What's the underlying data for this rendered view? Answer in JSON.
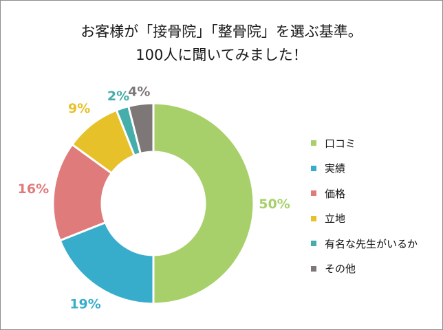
{
  "chart_data": {
    "type": "pie",
    "donut": true,
    "title": [
      "お客様が「接骨院」「整骨院」を選ぶ基準。",
      "100人に聞いてみました！"
    ],
    "categories": [
      "口コミ",
      "実績",
      "価格",
      "立地",
      "有名な先生がいるか",
      "その他"
    ],
    "values": [
      50,
      19,
      16,
      9,
      2,
      4
    ],
    "labels": [
      "50%",
      "19%",
      "16%",
      "9%",
      "2%",
      "4%"
    ],
    "colors": [
      "#A8D06A",
      "#38ADCB",
      "#E07B7B",
      "#E6C12A",
      "#45ADAA",
      "#7E7777"
    ],
    "legend": "right"
  }
}
